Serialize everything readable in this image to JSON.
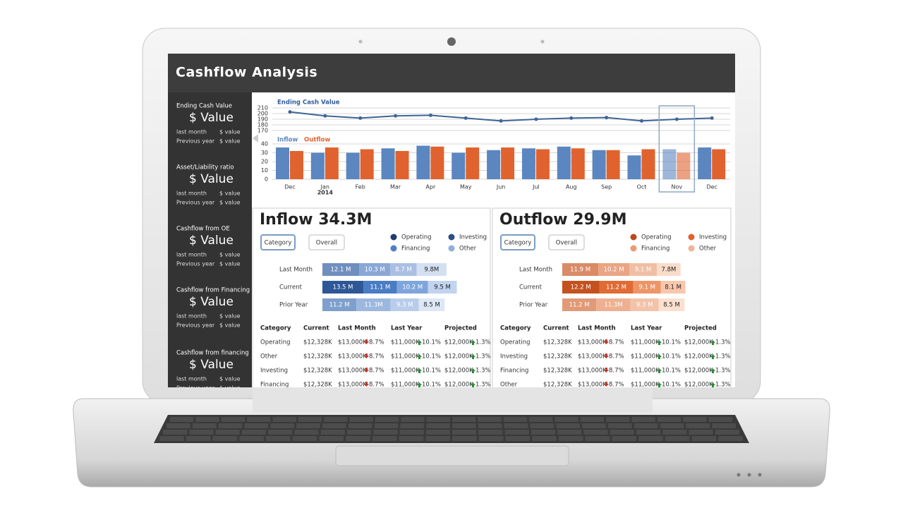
{
  "header": {
    "title": "Cashflow Analysis"
  },
  "sidebar": [
    {
      "label": "Ending Cash Value",
      "value": "$ Value",
      "rows": [
        {
          "label": "last month",
          "value": "$ value"
        },
        {
          "label": "Previous year",
          "value": "$ value"
        }
      ]
    },
    {
      "label": "Asset/Liability ratio",
      "value": "$ Value",
      "rows": [
        {
          "label": "last month",
          "value": "$ value"
        },
        {
          "label": "Previous year",
          "value": "$ value"
        }
      ]
    },
    {
      "label": "Cashflow from OE",
      "value": "$ Value",
      "rows": [
        {
          "label": "last month",
          "value": "$ value"
        },
        {
          "label": "Previous year",
          "value": "$ value"
        }
      ]
    },
    {
      "label": "Cashflow from Financing",
      "value": "$ Value",
      "rows": [
        {
          "label": "last month",
          "value": "$ value"
        },
        {
          "label": "Previous year",
          "value": "$ value"
        }
      ]
    },
    {
      "label": "Cashflow from financing",
      "value": "$ Value",
      "rows": [
        {
          "label": "last month",
          "value": "$ value"
        },
        {
          "label": "Previous year",
          "value": "$ value"
        }
      ]
    }
  ],
  "chart_data": [
    {
      "type": "line",
      "title": "Ending Cash Value",
      "categories": [
        "Dec",
        "Jan",
        "Feb",
        "Mar",
        "Apr",
        "May",
        "Jun",
        "Jul",
        "Aug",
        "Sep",
        "Oct",
        "Nov",
        "Dec"
      ],
      "values": [
        203,
        196,
        192,
        196,
        197,
        192,
        187,
        190,
        192,
        193,
        187,
        190,
        192
      ],
      "color": "#3f6596",
      "ylim": [
        170,
        210
      ],
      "yticks": [
        170,
        180,
        190,
        200,
        210
      ],
      "grid": true
    },
    {
      "type": "bar",
      "year_label": "2014",
      "categories": [
        "Dec",
        "Jan",
        "Feb",
        "Mar",
        "Apr",
        "May",
        "Jun",
        "Jul",
        "Aug",
        "Sep",
        "Oct",
        "Nov",
        "Dec"
      ],
      "series": [
        {
          "name": "Inflow",
          "color": "#5b86c0",
          "values": [
            36,
            30,
            30,
            35,
            38,
            30,
            33,
            35,
            37,
            33,
            27,
            34,
            36
          ]
        },
        {
          "name": "Outflow",
          "color": "#e0632f",
          "values": [
            32,
            36,
            34,
            32,
            37,
            36,
            36,
            34,
            35,
            33,
            34,
            30,
            34
          ]
        }
      ],
      "ylim": [
        0,
        40
      ],
      "yticks": [
        0,
        10,
        20,
        30,
        40
      ],
      "grid": true,
      "selected_index": 11
    }
  ],
  "panels": [
    {
      "title": "Inflow 34.3M",
      "buttons": [
        "Category",
        "Overall"
      ],
      "active_button": 0,
      "legend": [
        {
          "name": "Operating",
          "color": "#1f3d6e"
        },
        {
          "name": "Investing",
          "color": "#2a4f80"
        },
        {
          "name": "Financing",
          "color": "#4f7fc4"
        },
        {
          "name": "Other",
          "color": "#8fb0dc"
        }
      ],
      "rows": [
        {
          "label": "Last Month",
          "values": [
            12.1,
            10.3,
            8.7,
            9.8
          ],
          "value_labels": [
            "12.1 M",
            "10.3 M",
            "8.7 M",
            "9.8M"
          ],
          "colors": [
            "#6f8fbf",
            "#8aa8d6",
            "#a9c0e3",
            "#d3e0f2"
          ]
        },
        {
          "label": "Current",
          "values": [
            13.5,
            11.1,
            10.2,
            9.5
          ],
          "value_labels": [
            "13.5 M",
            "11.1 M",
            "10.2 M",
            "9.5 M"
          ],
          "colors": [
            "#2d5796",
            "#4a7cc4",
            "#7ea5dc",
            "#c1d3ee"
          ]
        },
        {
          "label": "Prior Year",
          "values": [
            11.2,
            11.3,
            9.3,
            8.5
          ],
          "value_labels": [
            "11.2 M",
            "11.3M",
            "9.3 M",
            "8.5 M"
          ],
          "colors": [
            "#7f9fcc",
            "#9db8de",
            "#b9cdea",
            "#dde7f5"
          ]
        }
      ],
      "table": {
        "columns": [
          "Category",
          "Current",
          "Last Month",
          "Last Year",
          "Projected"
        ],
        "rows": [
          [
            "Operating",
            "$12,328K",
            [
              "$13,000K",
              "8.7%",
              "down"
            ],
            [
              "$11,000K",
              "10.1%",
              "up"
            ],
            [
              "$12,000K",
              "1.3%",
              "up"
            ]
          ],
          [
            "Other",
            "$12,328K",
            [
              "$13,000K",
              "8.7%",
              "down"
            ],
            [
              "$11,000K",
              "10.1%",
              "up"
            ],
            [
              "$12,000K",
              "1.3%",
              "up"
            ]
          ],
          [
            "Investing",
            "$12,328K",
            [
              "$13,000K",
              "8.7%",
              "down"
            ],
            [
              "$11,000K",
              "10.1%",
              "up"
            ],
            [
              "$12,000K",
              "1.3%",
              "up"
            ]
          ],
          [
            "Financing",
            "$12,328K",
            [
              "$13,000K",
              "8.7%",
              "down"
            ],
            [
              "$11,000K",
              "10.1%",
              "up"
            ],
            [
              "$12,000K",
              "1.3%",
              "up"
            ]
          ]
        ]
      }
    },
    {
      "title": "Outflow 29.9M",
      "buttons": [
        "Category",
        "Overall"
      ],
      "active_button": 0,
      "legend": [
        {
          "name": "Operating",
          "color": "#b8491d"
        },
        {
          "name": "Investing",
          "color": "#e0632f"
        },
        {
          "name": "Financing",
          "color": "#ec9a72"
        },
        {
          "name": "Other",
          "color": "#f0b39a"
        }
      ],
      "rows": [
        {
          "label": "Last Month",
          "values": [
            11.9,
            10.2,
            9.1,
            7.8
          ],
          "value_labels": [
            "11.9 M",
            "10.2 M",
            "9.1 M",
            "7.8M"
          ],
          "colors": [
            "#d98b66",
            "#e9a584",
            "#f0bfa4",
            "#fadcca"
          ]
        },
        {
          "label": "Current",
          "values": [
            12.2,
            11.2,
            9.1,
            8.1
          ],
          "value_labels": [
            "12.2 M",
            "11.2 M",
            "9.1 M",
            "8.1 M"
          ],
          "colors": [
            "#c4521f",
            "#e06b34",
            "#ee9568",
            "#f8c7ac"
          ]
        },
        {
          "label": "Prior Year",
          "values": [
            11.2,
            11.3,
            9.3,
            8.5
          ],
          "value_labels": [
            "11.2 M",
            "11.3M",
            "9.3 M",
            "8.5 M"
          ],
          "colors": [
            "#e09a78",
            "#eeb090",
            "#f2c3a8",
            "#fbe0d0"
          ]
        }
      ],
      "table": {
        "columns": [
          "Category",
          "Current",
          "Last Month",
          "Last Year",
          "Projected"
        ],
        "rows": [
          [
            "Operating",
            "$12,328K",
            [
              "$13,000K",
              "8.7%",
              "down"
            ],
            [
              "$11,000K",
              "10.1%",
              "up"
            ],
            [
              "$12,000K",
              "1.3%",
              "up"
            ]
          ],
          [
            "Investing",
            "$12,328K",
            [
              "$13,000K",
              "8.7%",
              "down"
            ],
            [
              "$11,000K",
              "10.1%",
              "up"
            ],
            [
              "$12,000K",
              "1.3%",
              "up"
            ]
          ],
          [
            "Financing",
            "$12,328K",
            [
              "$13,000K",
              "8.7%",
              "down"
            ],
            [
              "$11,000K",
              "10.1%",
              "up"
            ],
            [
              "$12,000K",
              "1.3%",
              "up"
            ]
          ],
          [
            "Other",
            "$12,328K",
            [
              "$13,000K",
              "8.7%",
              "down"
            ],
            [
              "$11,000K",
              "10.1%",
              "up"
            ],
            [
              "$12,000K",
              "1.3%",
              "up"
            ]
          ]
        ]
      }
    }
  ]
}
